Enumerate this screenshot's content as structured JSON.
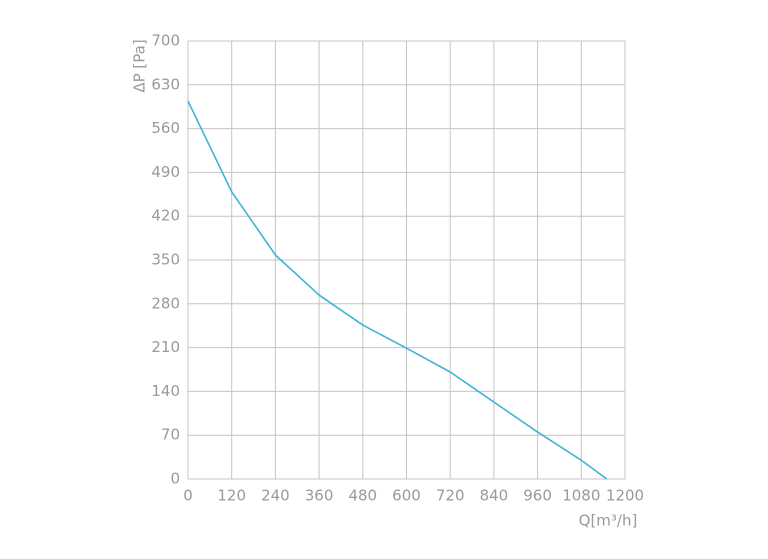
{
  "chart_data": {
    "type": "line",
    "x_label": "Q[m³/h]",
    "y_label": "ΔP [Pa]",
    "x": [
      0,
      120,
      240,
      360,
      480,
      600,
      720,
      840,
      960,
      1080,
      1150
    ],
    "series": [
      {
        "color": "#3fb3d9",
        "values": [
          604,
          459,
          358,
          294,
          246,
          209,
          171,
          123,
          75,
          30,
          0
        ]
      }
    ],
    "xlim": [
      0,
      1200
    ],
    "xticks": [
      0,
      120,
      240,
      360,
      480,
      600,
      720,
      840,
      960,
      1080,
      1200
    ],
    "ylim": [
      0,
      700
    ],
    "yticks": [
      0,
      70,
      140,
      210,
      280,
      350,
      420,
      490,
      560,
      630,
      700
    ],
    "grid": true
  }
}
